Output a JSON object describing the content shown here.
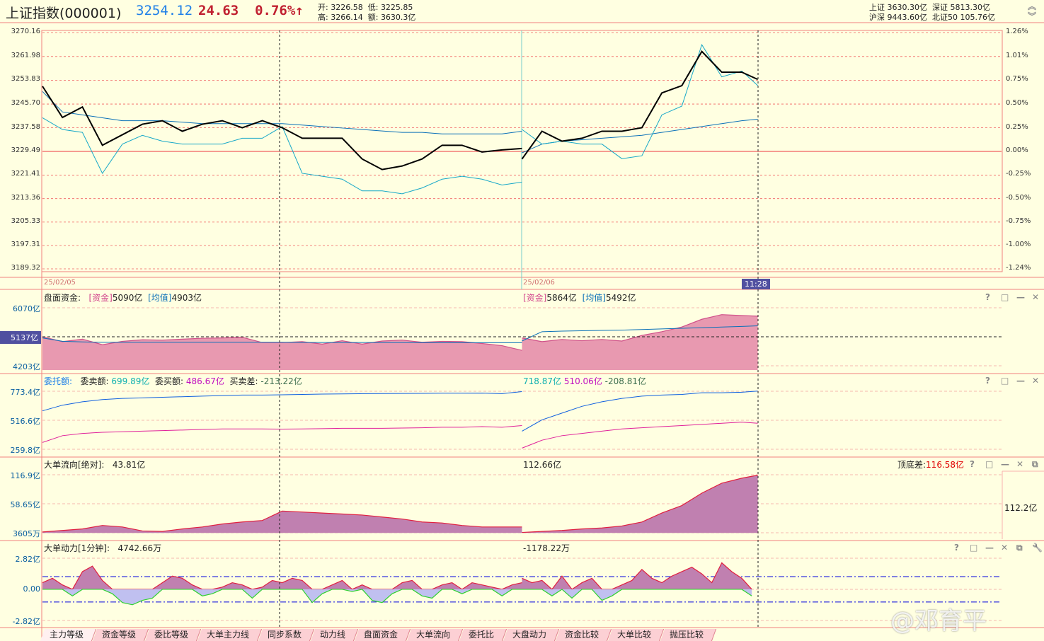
{
  "header": {
    "name": "上证指数(000001)",
    "price": "3254.12",
    "change": "24.63",
    "change_pct": "0.76%",
    "arrow": "↑",
    "open_label": "开:",
    "open": "3226.58",
    "low_label": "低:",
    "low": "3225.85",
    "high_label": "高:",
    "high": "3266.14",
    "amount_label": "额:",
    "amount": "3630.3亿",
    "sh_label": "上证",
    "sh": "3630.30亿",
    "sz_label": "深证",
    "sz": "5813.30亿",
    "hs_label": "沪深",
    "hs": "9443.60亿",
    "bz_label": "北证50",
    "bz": "105.76亿"
  },
  "colors": {
    "background": "#ffffe1",
    "border": "#f08080",
    "price_line": "#000000",
    "equal_weight_line": "#17a8c8",
    "average_line": "#0a70b8",
    "up": "#c02030",
    "fund_area": "#e899b0",
    "flow_area": "#c080b0",
    "sell_line": "#1060e0",
    "buy_line": "#e0209a"
  },
  "chart_data": [
    {
      "type": "line",
      "panel": "main",
      "y_ticks": [
        "3270.16",
        "3261.98",
        "3253.83",
        "3245.70",
        "3237.58",
        "3229.49",
        "3221.41",
        "3213.36",
        "3205.33",
        "3197.31",
        "3189.32"
      ],
      "y_ticks_right": [
        "1.26%",
        "1.01%",
        "0.75%",
        "0.50%",
        "0.25%",
        "0.00%",
        "-0.25%",
        "-0.50%",
        "-0.75%",
        "-1.00%",
        "-1.24%"
      ],
      "ylim": [
        3189.32,
        3270.16
      ],
      "prev_close": 3229.49,
      "dates": [
        "25/02/05",
        "25/02/06"
      ],
      "cursor_time": "11:28",
      "day1_minutes_step": 10,
      "day2_minutes": [
        0,
        10,
        20,
        30,
        40,
        50,
        60,
        70,
        80,
        90,
        100,
        110,
        118
      ],
      "price": {
        "day1": [
          3251.8,
          3241.1,
          3244.7,
          3231.6,
          3235.2,
          3238.8,
          3240.0,
          3236.4,
          3238.8,
          3240.0,
          3237.6,
          3240.0,
          3237.6,
          3234.0,
          3234.0,
          3234.0,
          3226.9,
          3223.3,
          3224.5,
          3226.9,
          3231.6,
          3231.6,
          3229.3,
          3230.0,
          3230.5
        ],
        "day2": [
          3226.9,
          3236.4,
          3233.0,
          3234.0,
          3236.4,
          3236.4,
          3237.6,
          3249.5,
          3252.0,
          3263.7,
          3256.6,
          3256.6,
          3254.12
        ]
      },
      "equal_weight": {
        "day1": [
          3241,
          3237,
          3236,
          3222,
          3232,
          3235,
          3233,
          3232,
          3232,
          3232,
          3234,
          3234,
          3238,
          3222,
          3221,
          3220,
          3216,
          3216,
          3215,
          3217,
          3220,
          3221,
          3220,
          3218,
          3219
        ],
        "day2": [
          3237,
          3232,
          3233,
          3232,
          3232,
          3227,
          3228,
          3242,
          3245,
          3266,
          3255,
          3257,
          3252
        ]
      },
      "average": {
        "day1": [
          3250,
          3243,
          3242,
          3241,
          3240,
          3240,
          3240,
          3239.5,
          3239,
          3239,
          3239,
          3239,
          3239,
          3238.5,
          3238,
          3237.5,
          3237,
          3236.5,
          3236,
          3236,
          3235.5,
          3235.5,
          3235.5,
          3235.5,
          3236.4
        ],
        "day2": [
          3229,
          3232,
          3233,
          3233.5,
          3234,
          3234.5,
          3235,
          3236,
          3237,
          3238,
          3239,
          3240,
          3240.5
        ]
      }
    },
    {
      "type": "area",
      "panel": "fund",
      "title": "盘面资金:",
      "legend1": "[资金]",
      "val1_d1": "5090亿",
      "legend2": "[均值]",
      "val2_d1": "4903亿",
      "val1_d2": "5864亿",
      "val2_d2": "5492亿",
      "y_ticks": [
        "6070亿",
        "4203亿"
      ],
      "tick_values": [
        6070,
        4203
      ],
      "ref_label": "5137亿",
      "ref_value": 5137,
      "ylim": [
        4066,
        6594
      ],
      "fund": {
        "day1": [
          5137,
          4980,
          5060,
          4880,
          4990,
          5040,
          5030,
          5060,
          5090,
          5100,
          5120,
          4950,
          4950,
          4980,
          4900,
          5010,
          4900,
          5000,
          5030,
          4960,
          4990,
          4980,
          4920,
          4850,
          4700
        ],
        "day2": [
          5100,
          4980,
          5050,
          5010,
          5050,
          5000,
          5180,
          5300,
          5450,
          5700,
          5850,
          5820,
          5800
        ]
      },
      "avg": {
        "day1": [
          5100,
          4990,
          4970,
          4960,
          4960,
          4960,
          4960,
          4960,
          4960,
          4960,
          4960,
          4960,
          4960,
          4955,
          4950,
          4950,
          4950,
          4950,
          4950,
          4945,
          4945,
          4945,
          4945,
          4945,
          4945
        ],
        "day2": [
          5000,
          5300,
          5320,
          5330,
          5340,
          5350,
          5370,
          5390,
          5410,
          5430,
          5450,
          5470,
          5490
        ]
      }
    },
    {
      "type": "line",
      "panel": "orders",
      "title": "委托额:",
      "sell_label": "委卖额:",
      "sell_d1": "699.89亿",
      "buy_label": "委买额:",
      "buy_d1": "486.67亿",
      "diff_label": "买卖差:",
      "diff_d1": "-213.22亿",
      "sell_d2": "718.87亿",
      "buy_d2": "510.06亿",
      "diff_d2": "-208.81亿",
      "y_ticks": [
        "773.4亿",
        "516.6亿",
        "259.8亿"
      ],
      "tick_values": [
        773.4,
        516.6,
        259.8
      ],
      "ylim": [
        209.7,
        917.5
      ],
      "sell": {
        "day1": [
          600,
          650,
          680,
          700,
          710,
          715,
          720,
          725,
          730,
          735,
          740,
          740,
          742,
          745,
          748,
          750,
          752,
          753,
          754,
          755,
          756,
          756,
          757,
          752,
          770
        ],
        "day2": [
          420,
          520,
          580,
          640,
          680,
          710,
          730,
          740,
          745,
          760,
          760,
          765,
          775
        ]
      },
      "buy": {
        "day1": [
          320,
          380,
          400,
          410,
          415,
          420,
          425,
          430,
          435,
          440,
          440,
          440,
          438,
          440,
          442,
          445,
          445,
          445,
          448,
          450,
          455,
          455,
          460,
          455,
          470
        ],
        "day2": [
          270,
          340,
          380,
          400,
          420,
          440,
          450,
          460,
          470,
          480,
          490,
          500,
          490
        ]
      }
    },
    {
      "type": "area",
      "panel": "flow",
      "title": "大单流向[绝对]:",
      "val_d1": "43.81亿",
      "val_d2": "112.66亿",
      "spread_label": "顶底差:",
      "spread": "116.58亿",
      "right_value": "112.2亿",
      "y_ticks": [
        "116.9亿",
        "58.65亿",
        "3605万"
      ],
      "tick_values": [
        116.9,
        58.65,
        0.36
      ],
      "ylim": [
        -11,
        149.6
      ],
      "flow": {
        "day1": [
          2,
          5,
          8,
          15,
          12,
          4,
          3,
          8,
          12,
          18,
          22,
          25,
          44,
          42,
          40,
          38,
          36,
          32,
          28,
          22,
          20,
          15,
          12,
          12,
          12
        ],
        "day2": [
          1,
          3,
          5,
          8,
          10,
          14,
          22,
          40,
          55,
          80,
          100,
          110,
          116
        ]
      }
    },
    {
      "type": "area",
      "panel": "power",
      "title": "大单动力[1分钟]:",
      "val_d1": "4742.66万",
      "val_d2": "-1178.22万",
      "y_ticks": [
        "2.82亿",
        "0.00",
        "-2.82亿"
      ],
      "tick_values": [
        2.82,
        0,
        -2.82
      ],
      "thresholds": [
        1.15,
        -1.15
      ],
      "ylim": [
        -3.4,
        4.29
      ],
      "minutes_step": 5,
      "power": {
        "day1": [
          0.6,
          1.0,
          0.4,
          -0.6,
          1.6,
          2.1,
          0.8,
          -0.4,
          -1.2,
          -1.4,
          -1.0,
          -0.8,
          0.6,
          1.2,
          1.0,
          0.4,
          -0.6,
          -0.4,
          0.2,
          0.6,
          0.4,
          -0.8,
          0.2,
          0.8,
          0.6,
          1.0,
          0.8,
          -1.2,
          -0.4,
          0.4,
          0.8,
          -0.2,
          0.4,
          -1.0,
          -1.2,
          -0.4,
          0.6,
          0.8,
          -0.6,
          -0.8,
          0.4,
          0.6,
          -0.4,
          0.6,
          0.4,
          0.2,
          -0.6,
          0.4,
          0.6
        ],
        "day2": [
          1.0,
          0.6,
          0.8,
          -0.6,
          1.2,
          -0.8,
          0.6,
          1.0,
          -1.0,
          -0.6,
          0.4,
          0.8,
          1.8,
          1.0,
          0.6,
          1.2,
          1.6,
          2.0,
          1.4,
          0.6,
          2.4,
          1.6,
          1.0,
          -0.6
        ]
      }
    }
  ],
  "tabs": [
    "主力等级",
    "资金等级",
    "委比等级",
    "大单主力线",
    "同步系数",
    "动力线",
    "盘面资金",
    "大单流向",
    "委托比",
    "大盘动力",
    "资金比较",
    "大单比较",
    "抛压比较"
  ],
  "panel_controls": {
    "help": "?",
    "maximize": "□",
    "minimize": "—",
    "close": "✕"
  },
  "watermark": "@邓育平"
}
